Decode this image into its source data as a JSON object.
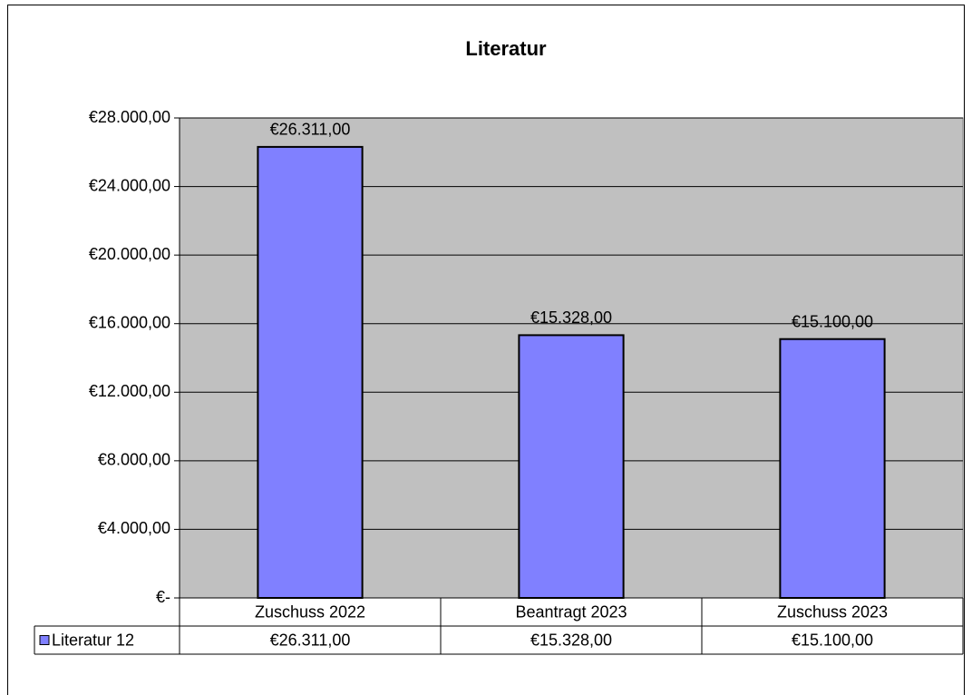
{
  "chart_data": {
    "type": "bar",
    "title": "Literatur",
    "categories": [
      "Zuschuss 2022",
      "Beantragt 2023",
      "Zuschuss 2023"
    ],
    "series": [
      {
        "name": "Literatur 12",
        "color": "#8080ff",
        "values": [
          26311,
          15328,
          15100
        ],
        "value_labels": [
          "€26.311,00",
          "€15.328,00",
          "€15.100,00"
        ]
      }
    ],
    "ylim": [
      0,
      28000
    ],
    "yticks": [
      {
        "value": 0,
        "label": "€-"
      },
      {
        "value": 4000,
        "label": "€4.000,00"
      },
      {
        "value": 8000,
        "label": "€8.000,00"
      },
      {
        "value": 12000,
        "label": "€12.000,00"
      },
      {
        "value": 16000,
        "label": "€16.000,00"
      },
      {
        "value": 20000,
        "label": "€20.000,00"
      },
      {
        "value": 24000,
        "label": "€24.000,00"
      },
      {
        "value": 28000,
        "label": "€28.000,00"
      }
    ],
    "grid": true,
    "data_table": true
  }
}
